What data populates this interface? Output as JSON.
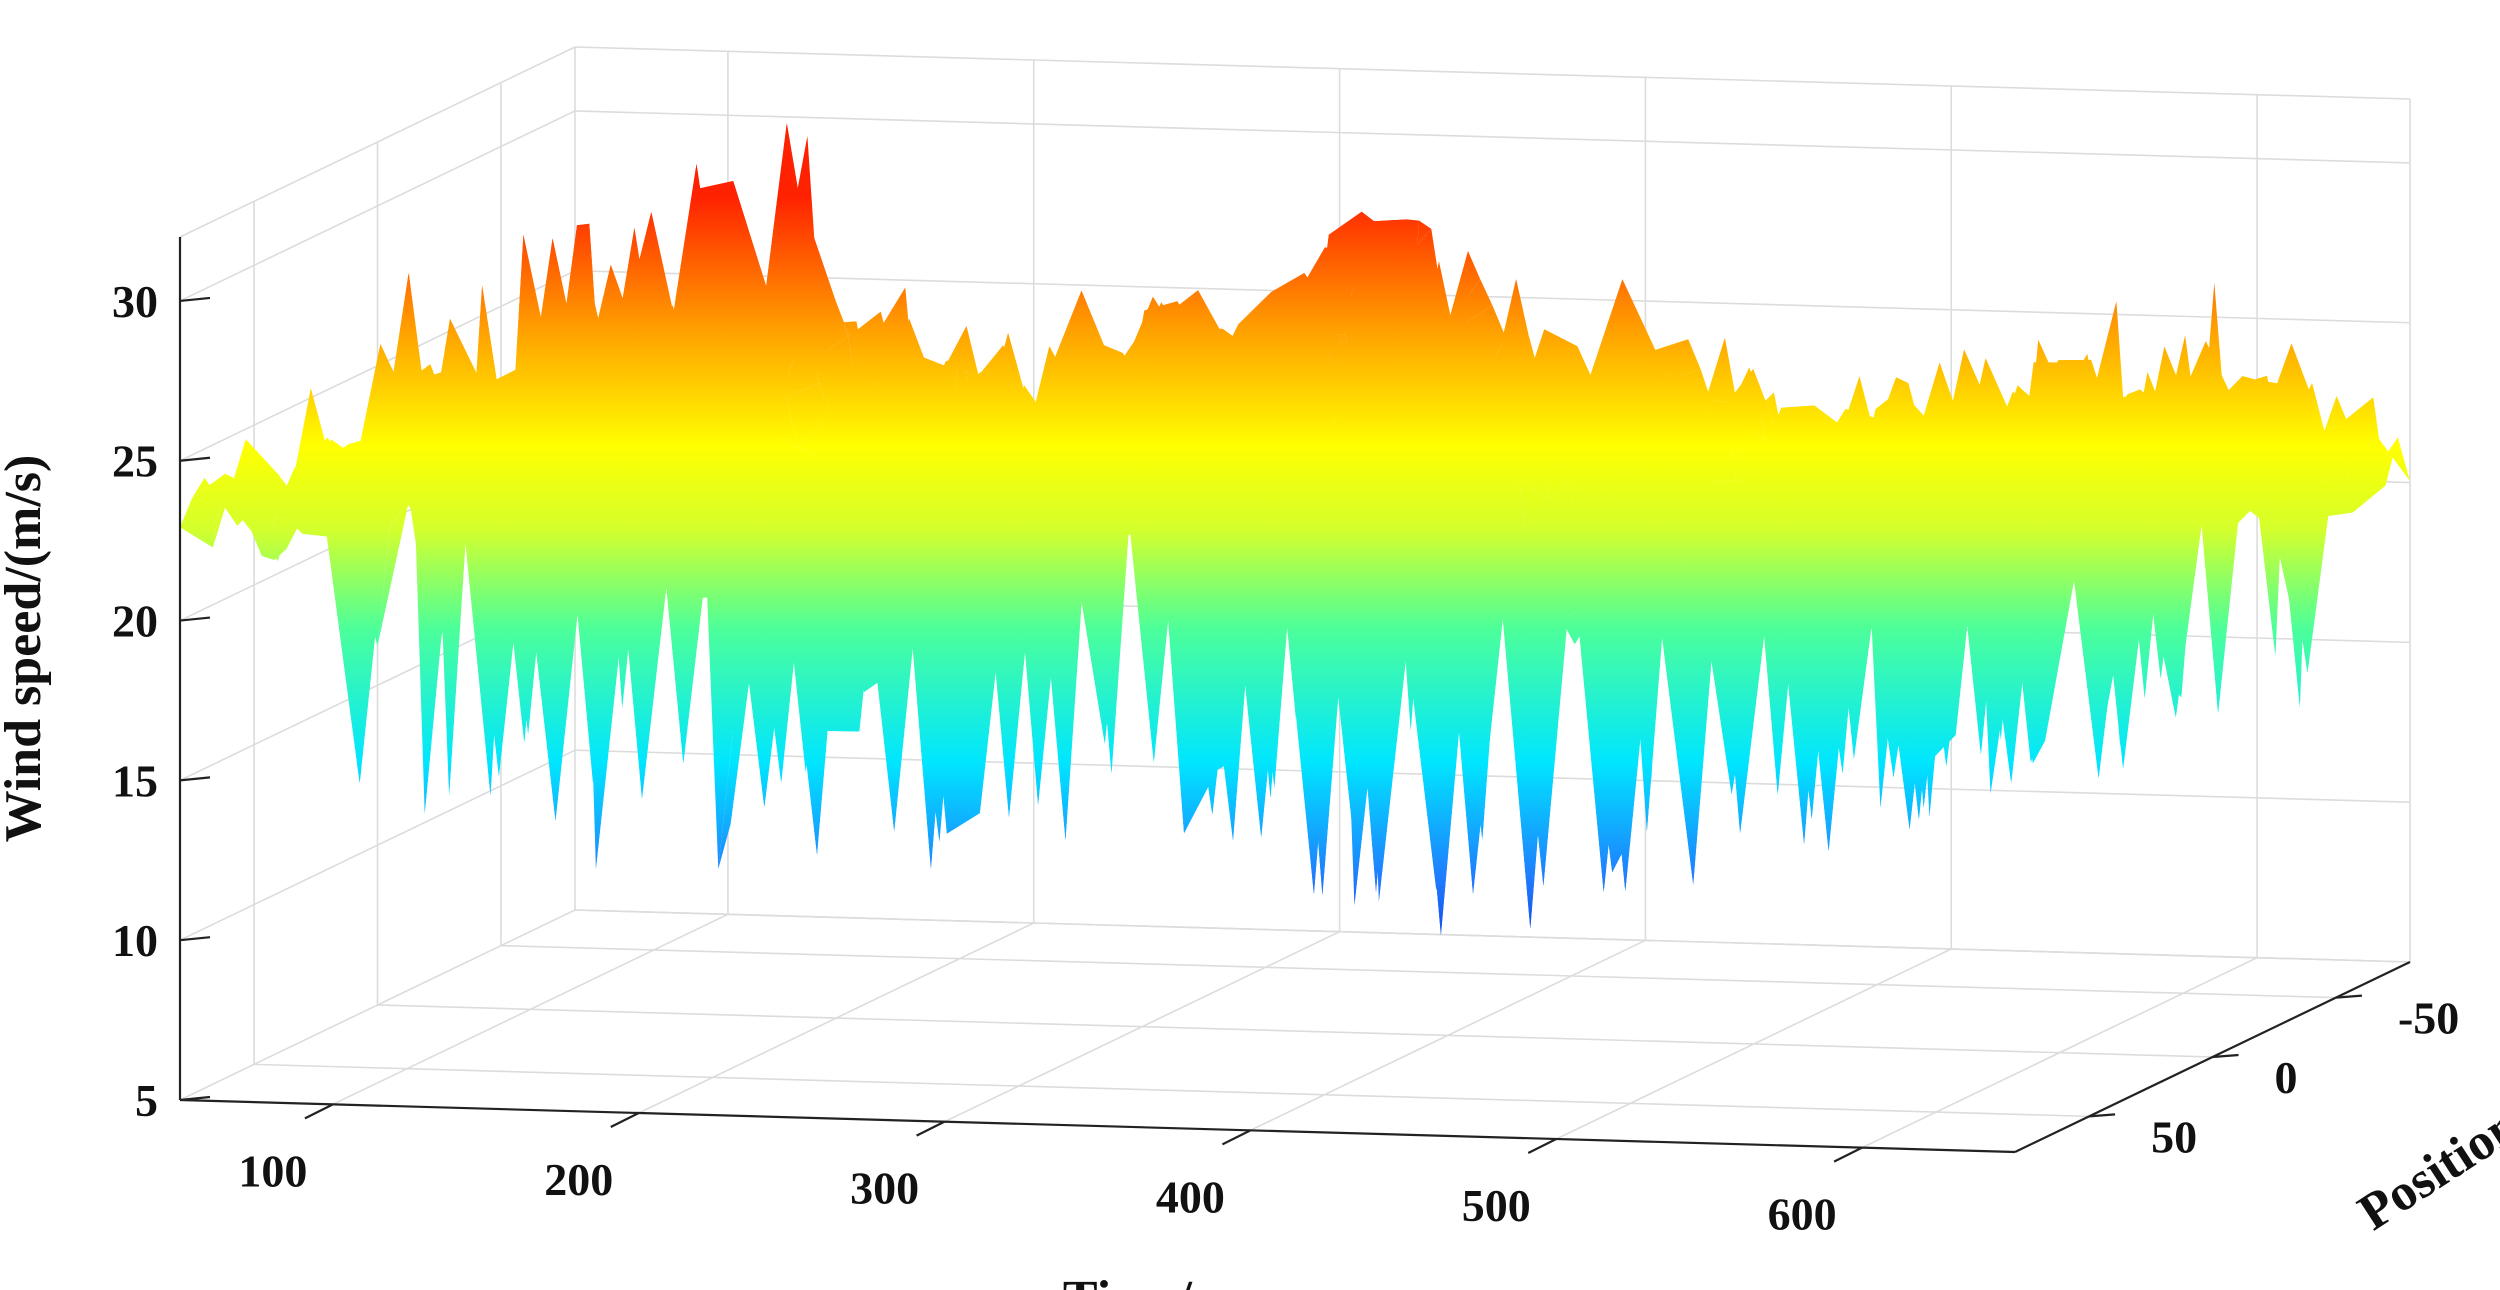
{
  "chart_data": {
    "type": "surface",
    "title": "",
    "xlabel": "Time/s",
    "ylabel": "Position/m",
    "zlabel": "Wind speed/(m/s)",
    "xlim": [
      50,
      650
    ],
    "ylim": [
      -80,
      80
    ],
    "zlim": [
      5,
      32
    ],
    "x_ticks": [
      100,
      200,
      300,
      400,
      500,
      600
    ],
    "y_ticks": [
      -50,
      0,
      50
    ],
    "z_ticks": [
      5,
      10,
      15,
      20,
      25,
      30
    ],
    "colormap": "jet",
    "grid": true,
    "surface_profile": {
      "x": [
        50,
        90,
        130,
        170,
        210,
        250,
        290,
        330,
        370,
        410,
        450,
        490,
        530,
        570,
        610,
        650
      ],
      "mean_speed": [
        21.5,
        23.5,
        24.0,
        22.5,
        21.0,
        21.5,
        24.5,
        26.0,
        22.0,
        23.5,
        21.5,
        21.0,
        22.0,
        23.0,
        23.0,
        22.0
      ],
      "peak_speed": [
        24.5,
        28.0,
        31.0,
        25.5,
        23.5,
        24.5,
        27.0,
        31.0,
        27.5,
        28.0,
        24.0,
        23.5,
        25.0,
        27.5,
        27.0,
        24.5
      ],
      "min_speed": [
        15.0,
        13.0,
        12.5,
        12.0,
        11.5,
        10.5,
        11.5,
        12.0,
        11.5,
        9.0,
        9.5,
        10.5,
        11.5,
        12.5,
        13.0,
        15.5
      ]
    }
  }
}
